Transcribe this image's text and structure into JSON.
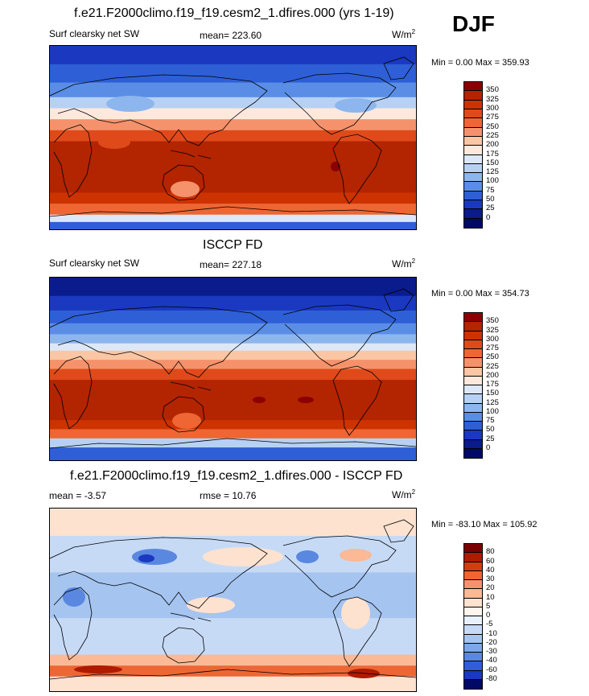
{
  "season": "DJF",
  "panels": [
    {
      "title": "f.e21.F2000climo.f19_f19.cesm2_1.dfires.000 (yrs 1-19)",
      "left_label": "Surf clearsky net SW",
      "center_label": "mean= 223.60",
      "units_base": "W/m",
      "units_exp": "2",
      "minmax": "Min =   0.00 Max = 359.93",
      "levels": [
        "350",
        "325",
        "300",
        "275",
        "250",
        "225",
        "200",
        "175",
        "150",
        "125",
        "100",
        "75",
        "50",
        "25",
        "0"
      ],
      "colors": [
        "#8b0000",
        "#b32400",
        "#cc3300",
        "#e04a1a",
        "#ee6633",
        "#f5926b",
        "#fbc6a4",
        "#fde9dc",
        "#dce8f8",
        "#b7d1f4",
        "#8db6ee",
        "#5a8ee6",
        "#2e5fd6",
        "#1a39c0",
        "#0a1b8c",
        "#000a66"
      ],
      "map_kind": "swfield_model"
    },
    {
      "title": "ISCCP FD",
      "left_label": "Surf clearsky net SW",
      "center_label": "mean= 227.18",
      "units_base": "W/m",
      "units_exp": "2",
      "minmax": "Min =   0.00 Max = 354.73",
      "levels": [
        "350",
        "325",
        "300",
        "275",
        "250",
        "225",
        "200",
        "175",
        "150",
        "125",
        "100",
        "75",
        "50",
        "25",
        "0"
      ],
      "colors": [
        "#8b0000",
        "#b32400",
        "#cc3300",
        "#e04a1a",
        "#ee6633",
        "#f5926b",
        "#fbc6a4",
        "#fde9dc",
        "#dce8f8",
        "#b7d1f4",
        "#8db6ee",
        "#5a8ee6",
        "#2e5fd6",
        "#1a39c0",
        "#0a1b8c",
        "#000a66"
      ],
      "map_kind": "swfield_obs"
    },
    {
      "title": "f.e21.F2000climo.f19_f19.cesm2_1.dfires.000 - ISCCP FD",
      "left_label": "mean =  -3.57",
      "center_label": "rmse =  10.76",
      "units_base": "W/m",
      "units_exp": "2",
      "minmax": "Min = -83.10 Max = 105.92",
      "levels": [
        "80",
        "60",
        "40",
        "30",
        "20",
        "10",
        "5",
        "0",
        "-5",
        "-10",
        "-20",
        "-30",
        "-40",
        "-60",
        "-80"
      ],
      "colors": [
        "#7a0000",
        "#b01a00",
        "#d63b10",
        "#ee6633",
        "#f5926b",
        "#fbb995",
        "#fde2d0",
        "#fff5ee",
        "#e8f0fb",
        "#c6daf6",
        "#a5c4f0",
        "#7ea6ea",
        "#5a88e0",
        "#2e5fd6",
        "#1a39c0",
        "#000a66"
      ],
      "map_kind": "diff"
    }
  ]
}
